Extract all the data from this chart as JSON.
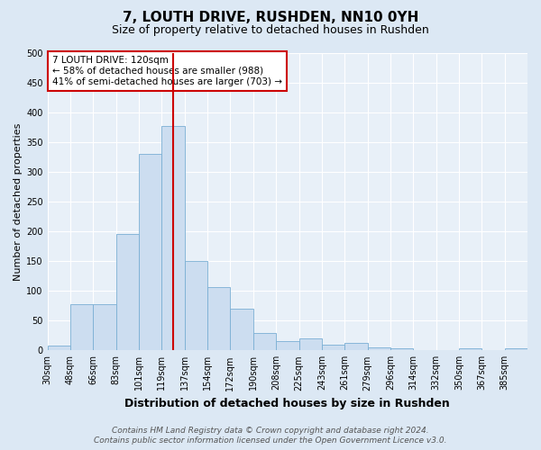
{
  "title": "7, LOUTH DRIVE, RUSHDEN, NN10 0YH",
  "subtitle": "Size of property relative to detached houses in Rushden",
  "xlabel": "Distribution of detached houses by size in Rushden",
  "ylabel": "Number of detached properties",
  "bar_labels": [
    "30sqm",
    "48sqm",
    "66sqm",
    "83sqm",
    "101sqm",
    "119sqm",
    "137sqm",
    "154sqm",
    "172sqm",
    "190sqm",
    "208sqm",
    "225sqm",
    "243sqm",
    "261sqm",
    "279sqm",
    "296sqm",
    "314sqm",
    "332sqm",
    "350sqm",
    "367sqm",
    "385sqm"
  ],
  "bar_values": [
    8,
    77,
    77,
    195,
    330,
    378,
    150,
    107,
    70,
    29,
    15,
    20,
    10,
    13,
    5,
    4,
    1,
    0,
    3,
    1,
    3
  ],
  "bar_color": "#ccddf0",
  "bar_edgecolor": "#7aafd4",
  "vline_color": "#cc0000",
  "ylim": [
    0,
    500
  ],
  "yticks": [
    0,
    50,
    100,
    150,
    200,
    250,
    300,
    350,
    400,
    450,
    500
  ],
  "annotation_text": "7 LOUTH DRIVE: 120sqm\n← 58% of detached houses are smaller (988)\n41% of semi-detached houses are larger (703) →",
  "annotation_box_facecolor": "#ffffff",
  "annotation_box_edgecolor": "#cc0000",
  "footer_line1": "Contains HM Land Registry data © Crown copyright and database right 2024.",
  "footer_line2": "Contains public sector information licensed under the Open Government Licence v3.0.",
  "bg_color": "#dce8f4",
  "plot_bg_color": "#e8f0f8",
  "grid_color": "#ffffff",
  "title_fontsize": 11,
  "subtitle_fontsize": 9,
  "xlabel_fontsize": 9,
  "ylabel_fontsize": 8,
  "tick_fontsize": 7,
  "annotation_fontsize": 7.5,
  "footer_fontsize": 6.5
}
